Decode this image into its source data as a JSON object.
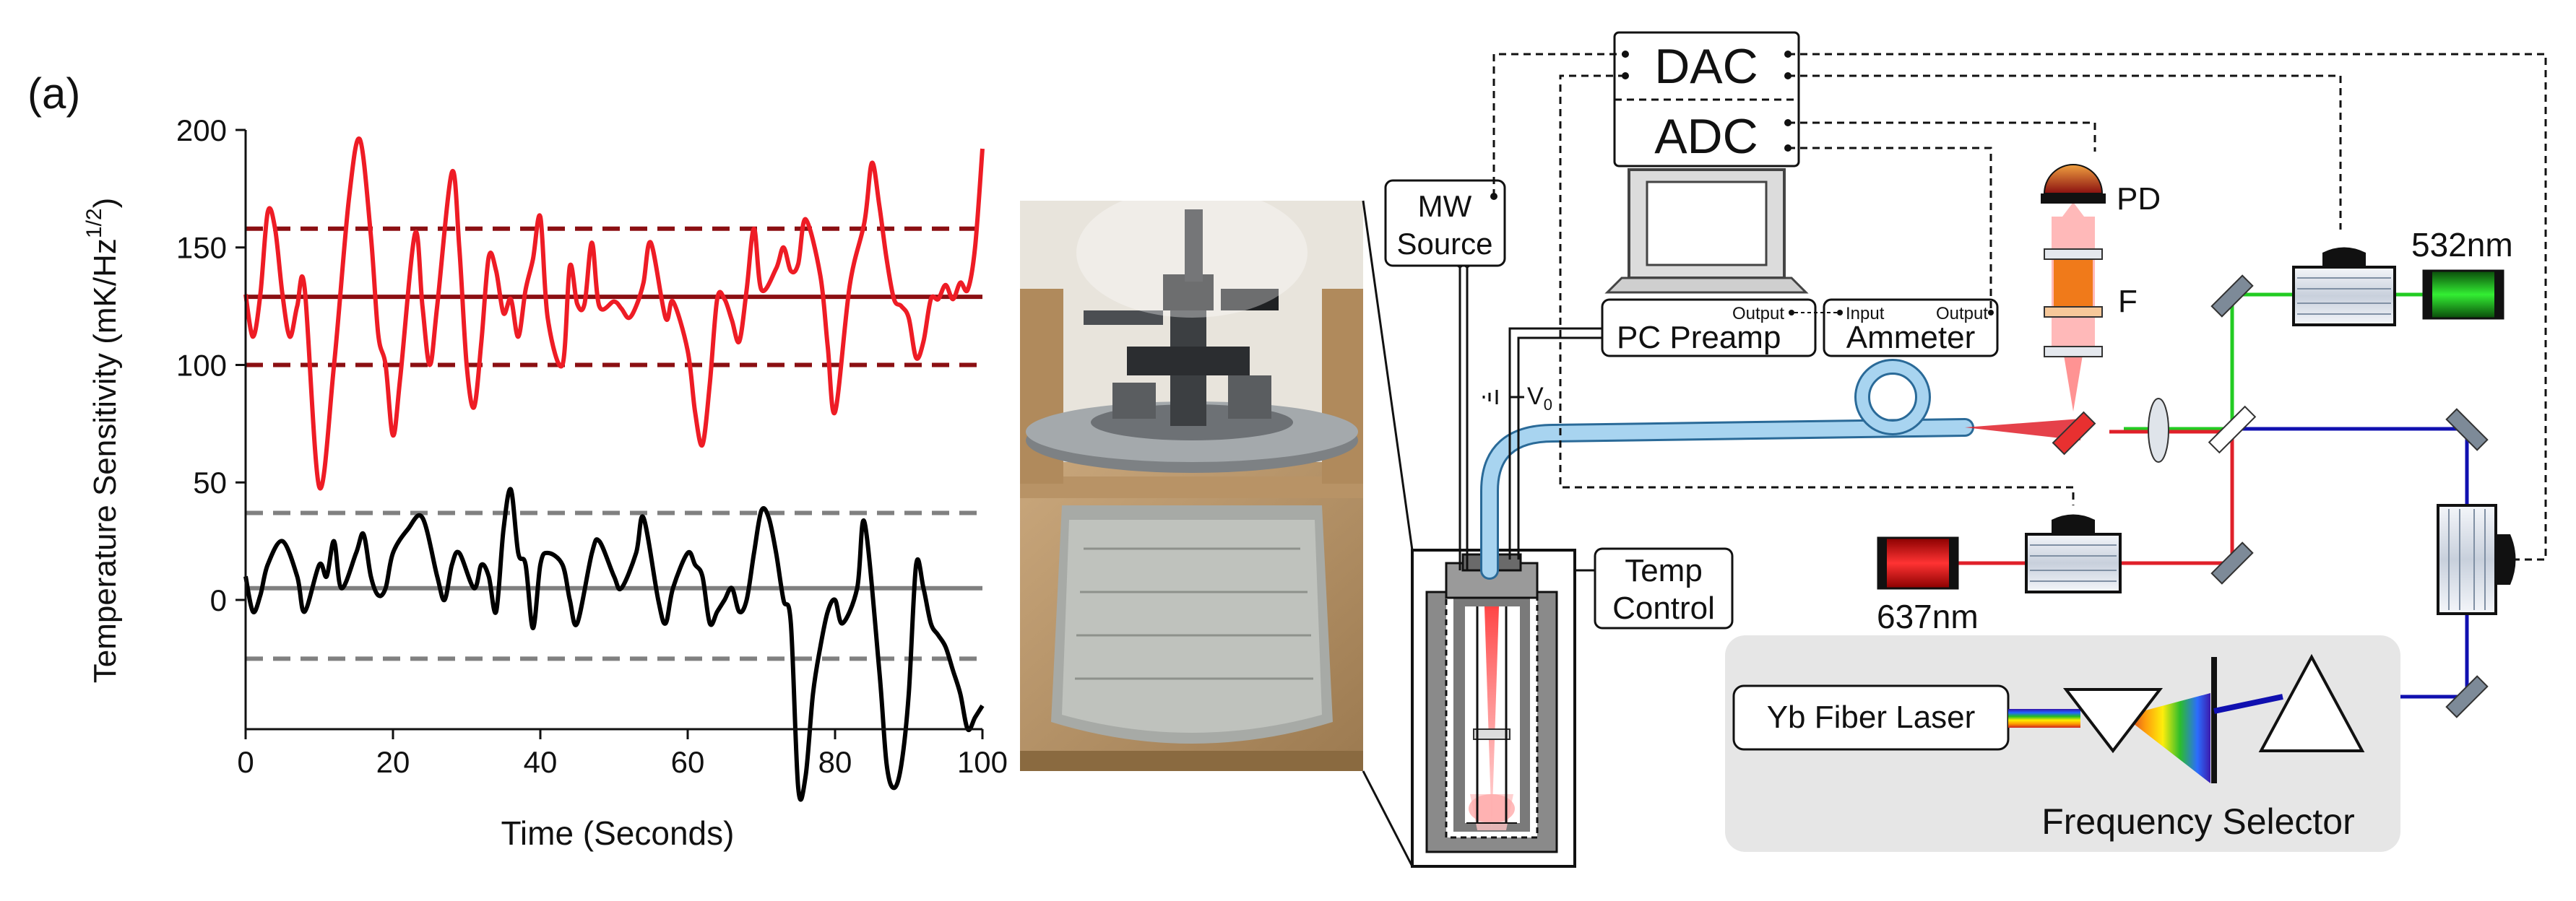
{
  "panel_label": "(a)",
  "colors": {
    "red_trace": "#ee1c25",
    "red_mean": "#8b0f12",
    "black_trace": "#000000",
    "gray_mean": "#808080",
    "green_beam": "#22cc22",
    "red_beam": "#e0202a",
    "blue_beam": "#1010b0",
    "fiber": "#a8d4f0",
    "selector_bg": "#e6e6e6"
  },
  "chart_data": {
    "type": "line",
    "title": "",
    "xlabel": "Time (Seconds)",
    "ylabel": "Temperature Sensitivity (mK/Hz",
    "ylabel_sup": "1/2",
    "ylabel_close": ")",
    "xlim": [
      0,
      100
    ],
    "ylim": [
      -55,
      200
    ],
    "xticks": [
      0,
      20,
      40,
      60,
      80,
      100
    ],
    "xtick_labels": [
      "0",
      "20",
      "40",
      "60",
      "80",
      "100"
    ],
    "yticks": [
      0,
      50,
      100,
      150,
      200
    ],
    "ytick_labels": [
      "0",
      "50",
      "100",
      "150",
      "200"
    ],
    "grid": false,
    "series": [
      {
        "color": "#ee1c25",
        "mean": 129,
        "band": [
          100,
          158
        ],
        "mean_color": "#8b0f12",
        "x": [
          0,
          1,
          2,
          3,
          4,
          5,
          6,
          7,
          8,
          10,
          12,
          14,
          15.5,
          17,
          18,
          19,
          20,
          21,
          23,
          24,
          25,
          26,
          28,
          29,
          30,
          31,
          32,
          33,
          34,
          35,
          36,
          37,
          38,
          39,
          40,
          41,
          43,
          44,
          45,
          46,
          47,
          48,
          50,
          51,
          52,
          53,
          54,
          55,
          57,
          58,
          60,
          61,
          62,
          63,
          64,
          65,
          66,
          67,
          68,
          69,
          70,
          72,
          73,
          74,
          75,
          76,
          78,
          79,
          80,
          82,
          84,
          85,
          86,
          87,
          88,
          89,
          90,
          91,
          92,
          93,
          94,
          95,
          96,
          97,
          98,
          99,
          100
        ],
        "y": [
          130,
          112,
          130,
          165,
          158,
          130,
          112,
          125,
          133,
          48,
          100,
          170,
          196,
          155,
          113,
          100,
          70,
          95,
          156,
          125,
          100,
          125,
          182,
          150,
          100,
          82,
          110,
          146,
          140,
          122,
          128,
          112,
          132,
          145,
          163,
          120,
          100,
          142,
          126,
          126,
          152,
          125,
          127,
          124,
          120,
          125,
          135,
          152,
          120,
          127,
          106,
          80,
          66,
          92,
          128,
          128,
          119,
          110,
          132,
          158,
          132,
          141,
          150,
          140,
          143,
          162,
          138,
          108,
          80,
          134,
          161,
          186,
          168,
          145,
          128,
          125,
          120,
          103,
          110,
          128,
          128,
          134,
          128,
          135,
          132,
          150,
          192
        ]
      },
      {
        "color": "#000000",
        "mean": 5,
        "band": [
          -25,
          37
        ],
        "mean_color": "#808080",
        "x": [
          0,
          1,
          2,
          3,
          5,
          7,
          8,
          10,
          11,
          12,
          13,
          15,
          16,
          17,
          18,
          19,
          20,
          22,
          24,
          26,
          27,
          28,
          29,
          31,
          32,
          33,
          34,
          35,
          36,
          37,
          38,
          39,
          40,
          41,
          43,
          44,
          45,
          47,
          48,
          50,
          51,
          53,
          54,
          56,
          57,
          58,
          60,
          61,
          62,
          63,
          64,
          65,
          66,
          67,
          68,
          69,
          70,
          71,
          72,
          73,
          74,
          75,
          76,
          77,
          78,
          79,
          80,
          81,
          83,
          84,
          86,
          87,
          88,
          89,
          90,
          91,
          92,
          93,
          94,
          95,
          96,
          97,
          98,
          99,
          100
        ],
        "y": [
          10,
          -5,
          2,
          15,
          25,
          10,
          -5,
          15,
          10,
          25,
          5,
          20,
          28,
          10,
          2,
          5,
          20,
          30,
          35,
          10,
          0,
          15,
          20,
          5,
          15,
          10,
          -5,
          30,
          47,
          20,
          15,
          -12,
          15,
          20,
          15,
          0,
          -10,
          20,
          25,
          10,
          5,
          20,
          35,
          0,
          -10,
          5,
          20,
          15,
          10,
          -10,
          -5,
          0,
          5,
          -5,
          0,
          20,
          38,
          35,
          20,
          0,
          -10,
          -80,
          -75,
          -40,
          -20,
          -5,
          0,
          -10,
          5,
          33,
          -30,
          -70,
          -80,
          -70,
          -40,
          15,
          5,
          -10,
          -15,
          -20,
          -30,
          -40,
          -55,
          -50,
          -45
        ]
      }
    ]
  },
  "diagram": {
    "dac": "DAC",
    "adc": "ADC",
    "mw_source": [
      "MW",
      "Source"
    ],
    "pc_preamp": "PC Preamp",
    "preamp_output": "Output",
    "ammeter_input": "Input",
    "ammeter_output": "Output",
    "ammeter": "Ammeter",
    "voltage_label": "V",
    "voltage_sub": "0",
    "temp_control": [
      "Temp",
      "Control"
    ],
    "pd_label": "PD",
    "filter_label": "F",
    "laser_532": "532nm",
    "laser_637": "637nm",
    "yb_laser": "Yb Fiber Laser",
    "frequency_selector": "Frequency Selector"
  }
}
